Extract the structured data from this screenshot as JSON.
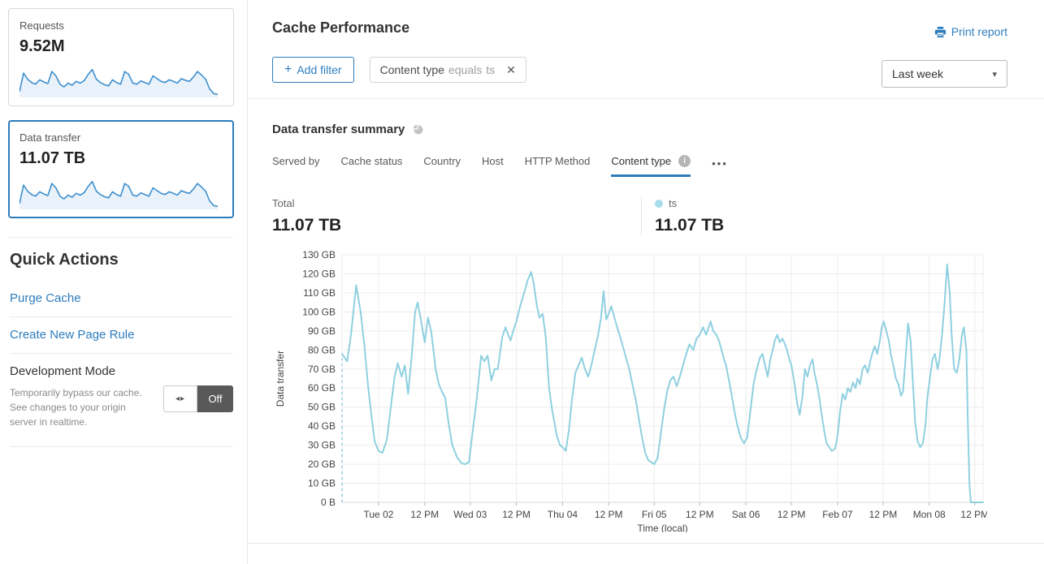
{
  "colors": {
    "accent": "#2d7dbe",
    "chart_line": "#8fd0e0",
    "spark_line": "#3d8fcf",
    "spark_fill": "#e9f2fa",
    "grid": "#ececec",
    "legend_dot": "#a6dcec",
    "toggle_off_bg": "#595959"
  },
  "icons": {
    "close": "✕",
    "caret": "▾",
    "more": "•••",
    "toggle_arrows": "◂▸",
    "info": "i",
    "plus": "+"
  },
  "sidebar": {
    "cards": [
      {
        "label": "Requests",
        "value": "9.52M"
      },
      {
        "label": "Data transfer",
        "value": "11.07 TB"
      }
    ],
    "sparkline_values": [
      15,
      82,
      60,
      48,
      42,
      58,
      50,
      44,
      88,
      72,
      42,
      32,
      46,
      38,
      52,
      46,
      55,
      78,
      95,
      60,
      48,
      40,
      36,
      58,
      48,
      42,
      88,
      78,
      46,
      42,
      54,
      48,
      42,
      72,
      62,
      52,
      48,
      58,
      52,
      46,
      62,
      56,
      52,
      68,
      88,
      75,
      60,
      25,
      8,
      5
    ],
    "quick_actions": {
      "heading": "Quick Actions",
      "links": [
        "Purge Cache",
        "Create New Page Rule"
      ],
      "development_mode": {
        "title": "Development Mode",
        "description": "Temporarily bypass our cache. See changes to your origin server in realtime.",
        "toggle_state": "Off"
      }
    }
  },
  "header": {
    "title": "Cache Performance",
    "print_report": "Print report",
    "add_filter_label": "Add filter",
    "filter_chip": {
      "field": "Content type",
      "operator": "equals",
      "value": "ts"
    },
    "time_range": "Last week"
  },
  "summary": {
    "heading": "Data transfer summary",
    "tabs": [
      {
        "label": "Served by"
      },
      {
        "label": "Cache status"
      },
      {
        "label": "Country"
      },
      {
        "label": "Host"
      },
      {
        "label": "HTTP Method"
      },
      {
        "label": "Content type"
      }
    ],
    "total_label": "Total",
    "total_value": "11.07 TB",
    "legend": {
      "name": "ts",
      "value": "11.07 TB"
    }
  },
  "chart_data": {
    "type": "line",
    "title": "Data transfer summary",
    "xlabel": "Time (local)",
    "ylabel": "Data transfer",
    "y_max_gb": 130,
    "grid": true,
    "y_ticks": [
      "0 B",
      "10 GB",
      "20 GB",
      "30 GB",
      "40 GB",
      "50 GB",
      "60 GB",
      "70 GB",
      "80 GB",
      "90 GB",
      "100 GB",
      "110 GB",
      "120 GB",
      "130 GB"
    ],
    "x_ticks": [
      {
        "f": 0.057,
        "label": "Tue 02"
      },
      {
        "f": 0.129,
        "label": "12 PM"
      },
      {
        "f": 0.2,
        "label": "Wed 03"
      },
      {
        "f": 0.272,
        "label": "12 PM"
      },
      {
        "f": 0.344,
        "label": "Thu 04"
      },
      {
        "f": 0.416,
        "label": "12 PM"
      },
      {
        "f": 0.487,
        "label": "Fri 05"
      },
      {
        "f": 0.558,
        "label": "12 PM"
      },
      {
        "f": 0.63,
        "label": "Sat 06"
      },
      {
        "f": 0.701,
        "label": "12 PM"
      },
      {
        "f": 0.773,
        "label": "Feb 07"
      },
      {
        "f": 0.844,
        "label": "12 PM"
      },
      {
        "f": 0.916,
        "label": "Mon 08"
      },
      {
        "f": 0.987,
        "label": "12 PM"
      }
    ],
    "leading_dashed_from_zero": true,
    "series": [
      {
        "name": "ts",
        "unit": "GB",
        "color": "#8fd0e0",
        "points": [
          [
            0,
            78
          ],
          [
            0.008,
            74
          ],
          [
            0.014,
            88
          ],
          [
            0.022,
            114
          ],
          [
            0.029,
            100
          ],
          [
            0.035,
            82
          ],
          [
            0.041,
            60
          ],
          [
            0.046,
            45
          ],
          [
            0.051,
            32
          ],
          [
            0.057,
            27
          ],
          [
            0.063,
            26
          ],
          [
            0.07,
            33
          ],
          [
            0.076,
            50
          ],
          [
            0.082,
            66
          ],
          [
            0.087,
            73
          ],
          [
            0.093,
            66
          ],
          [
            0.098,
            72
          ],
          [
            0.103,
            57
          ],
          [
            0.109,
            78
          ],
          [
            0.114,
            100
          ],
          [
            0.118,
            105
          ],
          [
            0.123,
            96
          ],
          [
            0.129,
            84
          ],
          [
            0.134,
            97
          ],
          [
            0.139,
            90
          ],
          [
            0.146,
            70
          ],
          [
            0.151,
            62
          ],
          [
            0.156,
            58
          ],
          [
            0.161,
            55
          ],
          [
            0.166,
            42
          ],
          [
            0.172,
            30
          ],
          [
            0.179,
            24
          ],
          [
            0.185,
            21
          ],
          [
            0.191,
            20
          ],
          [
            0.198,
            21
          ],
          [
            0.204,
            38
          ],
          [
            0.21,
            54
          ],
          [
            0.217,
            77
          ],
          [
            0.222,
            74
          ],
          [
            0.227,
            77
          ],
          [
            0.233,
            64
          ],
          [
            0.238,
            70
          ],
          [
            0.243,
            70
          ],
          [
            0.25,
            87
          ],
          [
            0.255,
            92
          ],
          [
            0.259,
            88
          ],
          [
            0.263,
            85
          ],
          [
            0.267,
            90
          ],
          [
            0.272,
            95
          ],
          [
            0.278,
            103
          ],
          [
            0.284,
            110
          ],
          [
            0.29,
            117
          ],
          [
            0.295,
            121
          ],
          [
            0.299,
            115
          ],
          [
            0.304,
            103
          ],
          [
            0.308,
            97
          ],
          [
            0.313,
            99
          ],
          [
            0.318,
            86
          ],
          [
            0.323,
            60
          ],
          [
            0.328,
            48
          ],
          [
            0.335,
            35
          ],
          [
            0.34,
            30
          ],
          [
            0.344,
            29
          ],
          [
            0.349,
            27
          ],
          [
            0.354,
            38
          ],
          [
            0.359,
            55
          ],
          [
            0.364,
            68
          ],
          [
            0.369,
            72
          ],
          [
            0.374,
            76
          ],
          [
            0.379,
            70
          ],
          [
            0.384,
            66
          ],
          [
            0.389,
            72
          ],
          [
            0.394,
            80
          ],
          [
            0.399,
            87
          ],
          [
            0.404,
            97
          ],
          [
            0.408,
            111
          ],
          [
            0.412,
            96
          ],
          [
            0.416,
            99
          ],
          [
            0.42,
            103
          ],
          [
            0.425,
            97
          ],
          [
            0.429,
            92
          ],
          [
            0.433,
            88
          ],
          [
            0.438,
            82
          ],
          [
            0.443,
            76
          ],
          [
            0.448,
            70
          ],
          [
            0.453,
            62
          ],
          [
            0.458,
            54
          ],
          [
            0.463,
            44
          ],
          [
            0.468,
            34
          ],
          [
            0.473,
            26
          ],
          [
            0.478,
            22
          ],
          [
            0.483,
            21
          ],
          [
            0.487,
            20
          ],
          [
            0.492,
            23
          ],
          [
            0.497,
            35
          ],
          [
            0.502,
            48
          ],
          [
            0.507,
            58
          ],
          [
            0.512,
            64
          ],
          [
            0.517,
            66
          ],
          [
            0.522,
            61
          ],
          [
            0.527,
            66
          ],
          [
            0.532,
            72
          ],
          [
            0.537,
            78
          ],
          [
            0.542,
            83
          ],
          [
            0.548,
            80
          ],
          [
            0.553,
            86
          ],
          [
            0.558,
            88
          ],
          [
            0.563,
            92
          ],
          [
            0.568,
            88
          ],
          [
            0.572,
            92
          ],
          [
            0.575,
            95
          ],
          [
            0.579,
            90
          ],
          [
            0.584,
            88
          ],
          [
            0.588,
            85
          ],
          [
            0.592,
            80
          ],
          [
            0.596,
            75
          ],
          [
            0.599,
            72
          ],
          [
            0.603,
            65
          ],
          [
            0.607,
            58
          ],
          [
            0.612,
            48
          ],
          [
            0.617,
            40
          ],
          [
            0.622,
            34
          ],
          [
            0.627,
            31
          ],
          [
            0.632,
            34
          ],
          [
            0.637,
            48
          ],
          [
            0.642,
            62
          ],
          [
            0.647,
            70
          ],
          [
            0.652,
            76
          ],
          [
            0.656,
            78
          ],
          [
            0.66,
            72
          ],
          [
            0.664,
            66
          ],
          [
            0.668,
            75
          ],
          [
            0.672,
            80
          ],
          [
            0.675,
            85
          ],
          [
            0.679,
            88
          ],
          [
            0.683,
            84
          ],
          [
            0.687,
            86
          ],
          [
            0.691,
            83
          ],
          [
            0.694,
            80
          ],
          [
            0.698,
            75
          ],
          [
            0.701,
            72
          ],
          [
            0.706,
            62
          ],
          [
            0.71,
            52
          ],
          [
            0.714,
            46
          ],
          [
            0.718,
            55
          ],
          [
            0.722,
            70
          ],
          [
            0.726,
            66
          ],
          [
            0.73,
            72
          ],
          [
            0.734,
            75
          ],
          [
            0.737,
            68
          ],
          [
            0.741,
            62
          ],
          [
            0.745,
            54
          ],
          [
            0.749,
            44
          ],
          [
            0.753,
            36
          ],
          [
            0.756,
            31
          ],
          [
            0.76,
            29
          ],
          [
            0.764,
            27
          ],
          [
            0.769,
            28
          ],
          [
            0.773,
            35
          ],
          [
            0.777,
            48
          ],
          [
            0.781,
            57
          ],
          [
            0.785,
            54
          ],
          [
            0.789,
            60
          ],
          [
            0.793,
            58
          ],
          [
            0.797,
            63
          ],
          [
            0.801,
            60
          ],
          [
            0.804,
            65
          ],
          [
            0.808,
            62
          ],
          [
            0.812,
            70
          ],
          [
            0.816,
            72
          ],
          [
            0.82,
            68
          ],
          [
            0.824,
            74
          ],
          [
            0.827,
            78
          ],
          [
            0.831,
            82
          ],
          [
            0.835,
            78
          ],
          [
            0.839,
            85
          ],
          [
            0.842,
            92
          ],
          [
            0.845,
            95
          ],
          [
            0.849,
            90
          ],
          [
            0.853,
            85
          ],
          [
            0.856,
            78
          ],
          [
            0.86,
            72
          ],
          [
            0.864,
            65
          ],
          [
            0.868,
            62
          ],
          [
            0.872,
            56
          ],
          [
            0.875,
            58
          ],
          [
            0.879,
            75
          ],
          [
            0.883,
            94
          ],
          [
            0.887,
            85
          ],
          [
            0.891,
            60
          ],
          [
            0.894,
            42
          ],
          [
            0.898,
            32
          ],
          [
            0.902,
            29
          ],
          [
            0.906,
            31
          ],
          [
            0.91,
            40
          ],
          [
            0.913,
            55
          ],
          [
            0.917,
            65
          ],
          [
            0.921,
            75
          ],
          [
            0.925,
            78
          ],
          [
            0.929,
            70
          ],
          [
            0.932,
            75
          ],
          [
            0.936,
            88
          ],
          [
            0.94,
            105
          ],
          [
            0.944,
            125
          ],
          [
            0.948,
            110
          ],
          [
            0.951,
            88
          ],
          [
            0.955,
            70
          ],
          [
            0.959,
            68
          ],
          [
            0.963,
            75
          ],
          [
            0.967,
            88
          ],
          [
            0.97,
            92
          ],
          [
            0.974,
            80
          ],
          [
            0.976,
            45
          ],
          [
            0.979,
            8
          ],
          [
            0.981,
            0
          ],
          [
            1,
            0
          ]
        ]
      }
    ]
  }
}
